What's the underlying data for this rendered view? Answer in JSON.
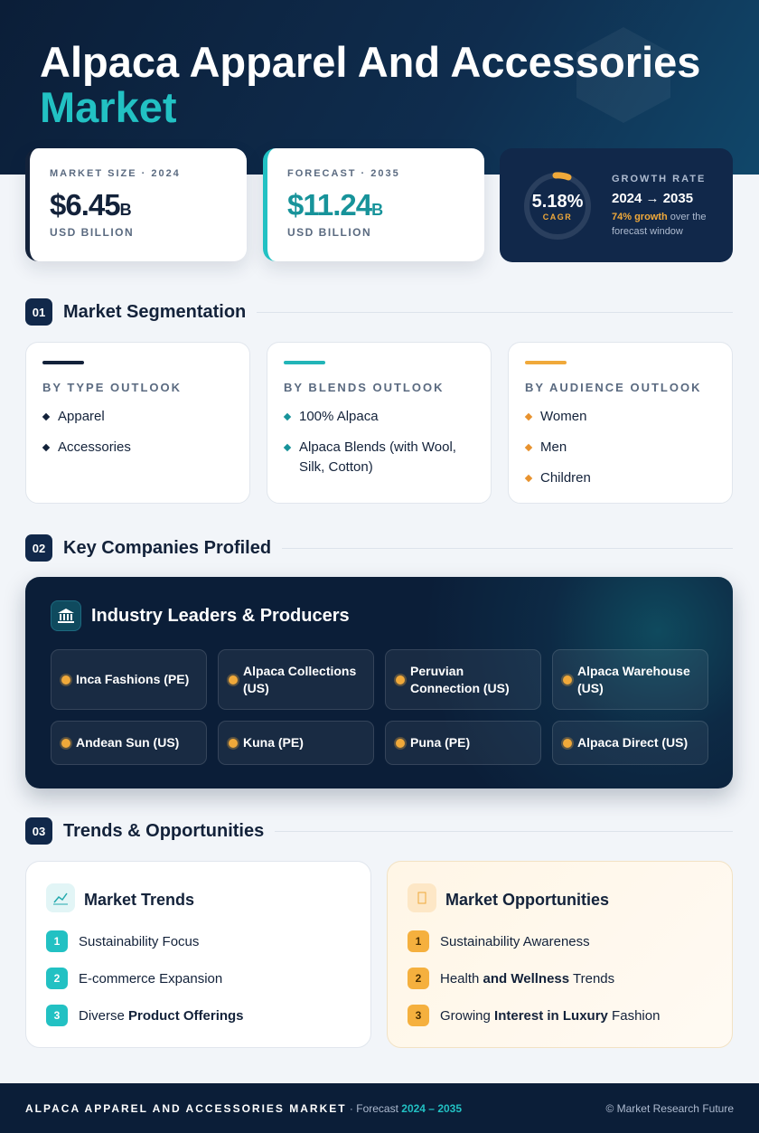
{
  "header": {
    "title": "Alpaca Apparel And Accessories",
    "title_highlight": "Market"
  },
  "stats": [
    {
      "label": "MARKET SIZE · 2024",
      "value": "$6.45",
      "unit": "B",
      "caption": "USD BILLION"
    },
    {
      "label": "FORECAST · 2035",
      "value": "$11.24",
      "unit": "B",
      "caption": "USD BILLION"
    }
  ],
  "growth": {
    "value": "5.18%",
    "value_label": "CAGR",
    "label": "GROWTH RATE",
    "period": "2024 → 2035",
    "highlight": "74% growth",
    "note": "over the forecast window"
  },
  "sections": [
    {
      "number": "01",
      "title": "Market Segmentation"
    },
    {
      "number": "02",
      "title": "Key Companies Profiled"
    },
    {
      "number": "03",
      "title": "Trends & Opportunities"
    }
  ],
  "segments": [
    {
      "title": "BY TYPE OUTLOOK",
      "items": [
        "Apparel",
        "Accessories"
      ]
    },
    {
      "title": "BY BLENDS OUTLOOK",
      "items": [
        "100% Alpaca",
        "Alpaca Blends (with Wool, Silk, Cotton)"
      ]
    },
    {
      "title": "BY AUDIENCE OUTLOOK",
      "items": [
        "Women",
        "Men",
        "Children"
      ]
    }
  ],
  "companies": {
    "title": "Industry Leaders & Producers",
    "items": [
      "Inca Fashions (PE)",
      "Alpaca Collections (US)",
      "Peruvian Connection (US)",
      "Alpaca Warehouse (US)",
      "Andean Sun (US)",
      "Kuna (PE)",
      "Puna (PE)",
      "Alpaca Direct (US)"
    ]
  },
  "trends": {
    "title": "Market Trends",
    "items": [
      {
        "number": "1",
        "parts": [
          "Sustainability Focus"
        ]
      },
      {
        "number": "2",
        "parts": [
          "E-commerce Expansion"
        ]
      },
      {
        "number": "3",
        "parts": [
          "Diverse ",
          "Product Offerings"
        ]
      }
    ]
  },
  "opportunities": {
    "title": "Market Opportunities",
    "items": [
      {
        "number": "1",
        "parts": [
          "Sustainability Awareness"
        ]
      },
      {
        "number": "2",
        "parts": [
          "Health ",
          "and Wellness",
          " Trends"
        ]
      },
      {
        "number": "3",
        "parts": [
          "Growing ",
          "Interest in Luxury",
          " Fashion"
        ]
      }
    ]
  },
  "footer": {
    "title": "ALPACA APPAREL AND ACCESSORIES MARKET",
    "forecast_label": "· Forecast",
    "forecast_period": "2024 – 2035",
    "credit": "© Market Research Future"
  }
}
